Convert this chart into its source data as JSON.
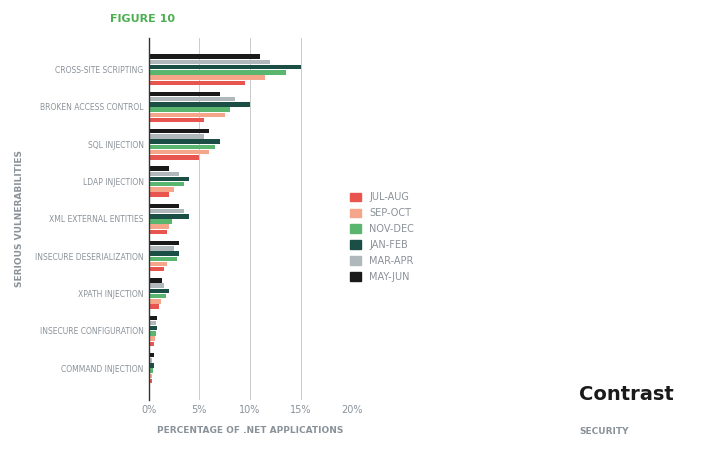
{
  "categories": [
    "CROSS-SITE SCRIPTING",
    "BROKEN ACCESS CONTROL",
    "SQL INJECTION",
    "LDAP INJECTION",
    "XML EXTERNAL ENTITIES",
    "INSECURE DESERIALIZATION",
    "XPATH INJECTION",
    "INSECURE CONFIGURATION",
    "COMMAND INJECTION"
  ],
  "series": {
    "JUL-AUG": [
      9.5,
      5.5,
      5.0,
      2.0,
      1.8,
      1.5,
      1.0,
      0.5,
      0.3
    ],
    "SEP-OCT": [
      11.5,
      7.5,
      6.0,
      2.5,
      2.0,
      1.8,
      1.2,
      0.6,
      0.3
    ],
    "NOV-DEC": [
      13.5,
      8.0,
      6.5,
      3.5,
      2.3,
      2.8,
      1.7,
      0.7,
      0.4
    ],
    "JAN-FEB": [
      15.0,
      10.0,
      7.0,
      4.0,
      4.0,
      3.0,
      2.0,
      0.8,
      0.5
    ],
    "MAR-APR": [
      12.0,
      8.5,
      5.5,
      3.0,
      3.5,
      2.5,
      1.5,
      0.7,
      0.3
    ],
    "MAY-JUN": [
      11.0,
      7.0,
      6.0,
      2.0,
      3.0,
      3.0,
      1.3,
      0.8,
      0.5
    ]
  },
  "colors": {
    "JUL-AUG": "#e8554e",
    "SEP-OCT": "#f4a58a",
    "NOV-DEC": "#5ab66e",
    "JAN-FEB": "#1b4f45",
    "MAR-APR": "#b0b8bc",
    "MAY-JUN": "#1a1a1a"
  },
  "xlabel": "PERCENTAGE OF .NET APPLICATIONS",
  "ylabel": "SERIOUS VULNERABILITIES",
  "figure_label": "FIGURE 10",
  "xlim": [
    0,
    20
  ],
  "xticks": [
    0,
    5,
    10,
    15,
    20
  ],
  "xticklabels": [
    "0%",
    "5%",
    "10%",
    "15%",
    "20%"
  ],
  "background_color": "#ffffff",
  "grid_color": "#cccccc",
  "figure_label_color": "#4caf50",
  "axis_label_color": "#8a9299",
  "tick_label_color": "#8a9299",
  "category_label_color": "#8a9299",
  "bar_height": 0.12,
  "bar_gap": 0.02
}
